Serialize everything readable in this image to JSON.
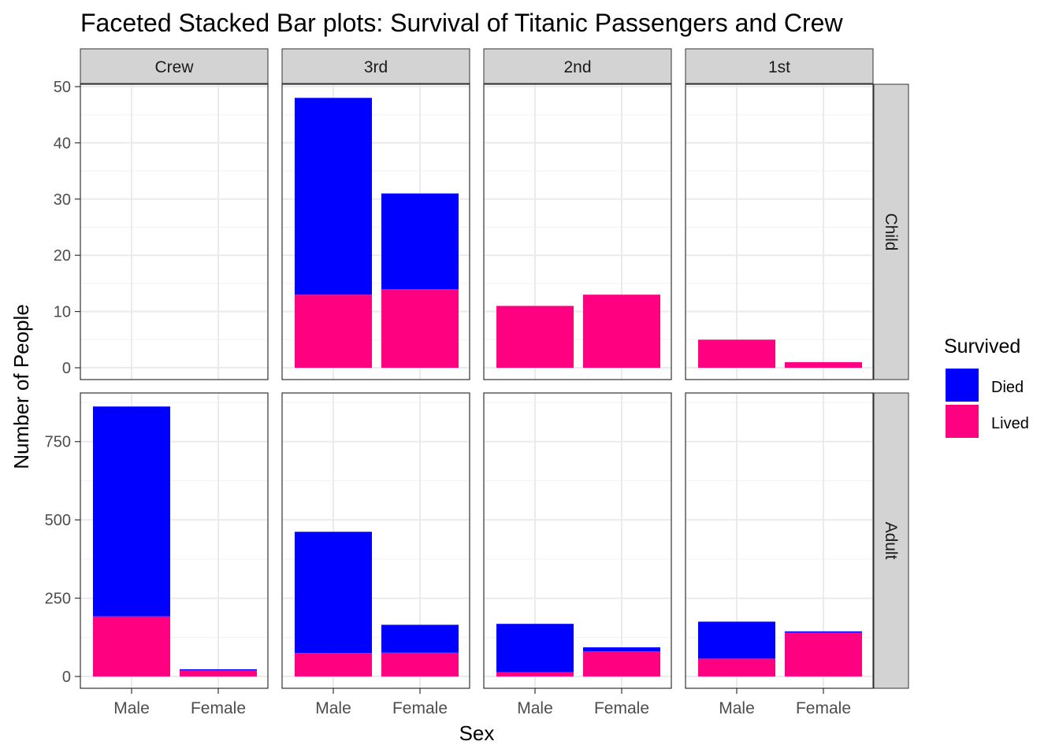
{
  "chart_data": {
    "type": "bar",
    "stacked": true,
    "title": "Faceted Stacked Bar plots: Survival of Titanic Passengers and Crew",
    "xlabel": "Sex",
    "ylabel": "Number of People",
    "categories": [
      "Male",
      "Female"
    ],
    "col_facets": [
      "Crew",
      "3rd",
      "2nd",
      "1st"
    ],
    "row_facets": [
      {
        "name": "Child",
        "ylim": [
          0,
          50
        ],
        "ticks": [
          0,
          10,
          20,
          30,
          40,
          50
        ]
      },
      {
        "name": "Adult",
        "ylim": [
          0,
          885
        ],
        "ticks": [
          0,
          250,
          500,
          750
        ]
      }
    ],
    "legend": {
      "title": "Survived",
      "position": "right",
      "entries": [
        {
          "name": "Died",
          "color": "#0000FF"
        },
        {
          "name": "Lived",
          "color": "#FF0080"
        }
      ]
    },
    "data": {
      "Child": {
        "Crew": {
          "Male": {
            "Lived": 0,
            "Died": 0
          },
          "Female": {
            "Lived": 0,
            "Died": 0
          }
        },
        "3rd": {
          "Male": {
            "Lived": 13,
            "Died": 35
          },
          "Female": {
            "Lived": 14,
            "Died": 17
          }
        },
        "2nd": {
          "Male": {
            "Lived": 11,
            "Died": 0
          },
          "Female": {
            "Lived": 13,
            "Died": 0
          }
        },
        "1st": {
          "Male": {
            "Lived": 5,
            "Died": 0
          },
          "Female": {
            "Lived": 1,
            "Died": 0
          }
        }
      },
      "Adult": {
        "Crew": {
          "Male": {
            "Lived": 192,
            "Died": 670
          },
          "Female": {
            "Lived": 20,
            "Died": 3
          }
        },
        "3rd": {
          "Male": {
            "Lived": 75,
            "Died": 387
          },
          "Female": {
            "Lived": 76,
            "Died": 89
          }
        },
        "2nd": {
          "Male": {
            "Lived": 14,
            "Died": 154
          },
          "Female": {
            "Lived": 80,
            "Died": 13
          }
        },
        "1st": {
          "Male": {
            "Lived": 57,
            "Died": 118
          },
          "Female": {
            "Lived": 140,
            "Died": 4
          }
        }
      }
    }
  }
}
